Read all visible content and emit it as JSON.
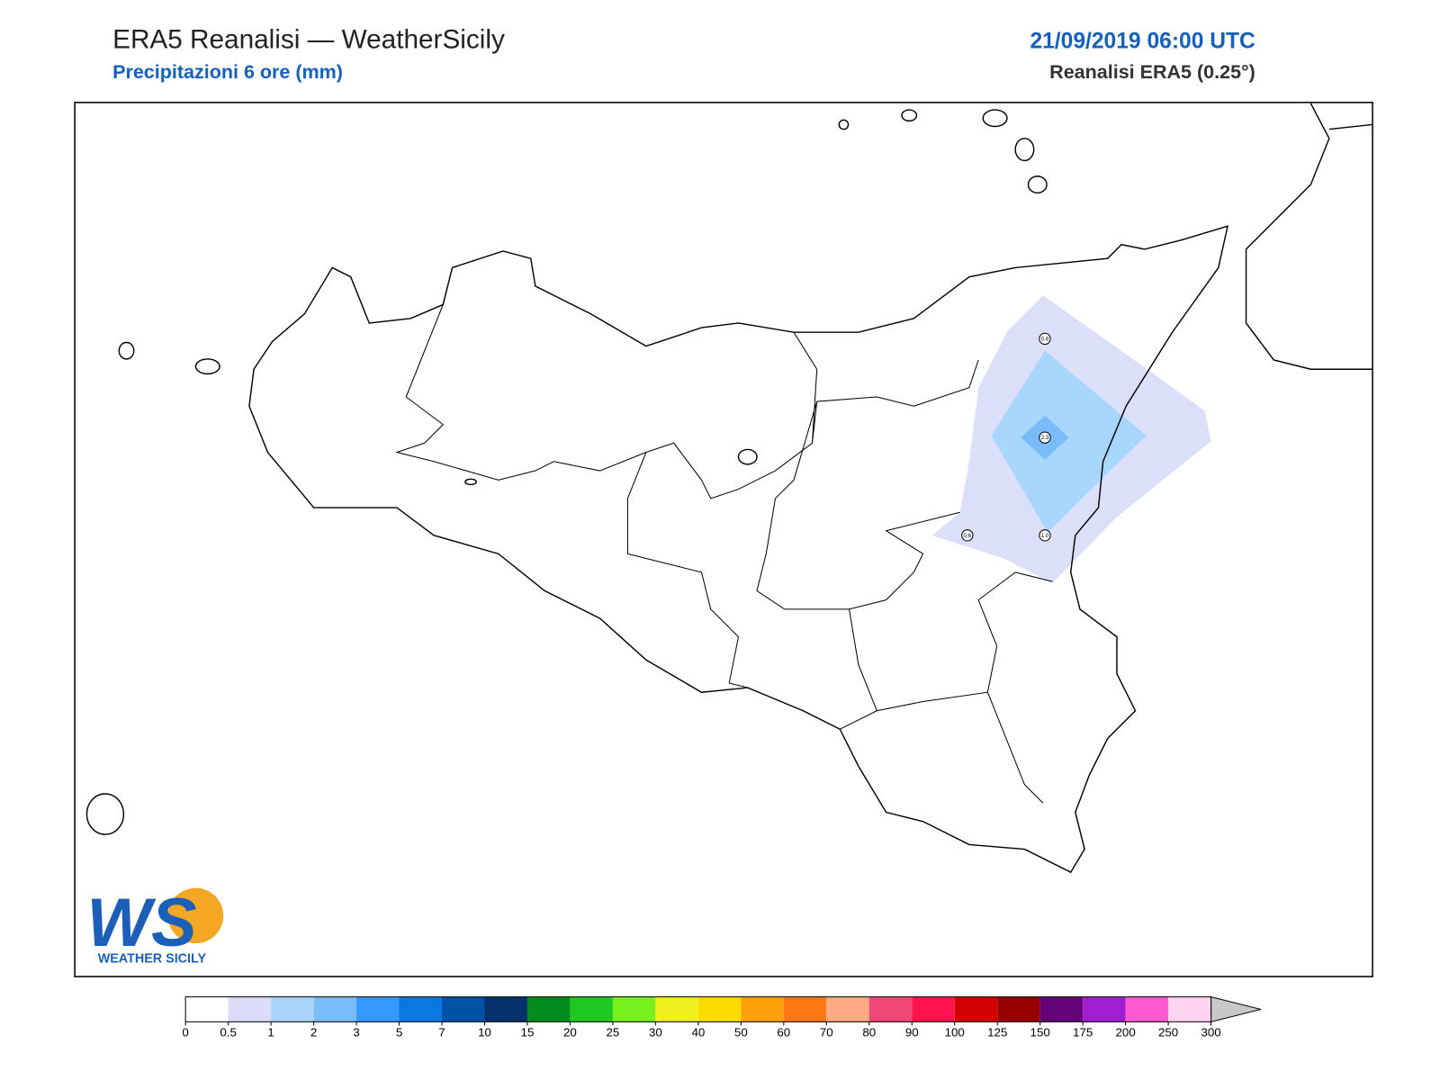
{
  "header": {
    "title": "ERA5 Reanalisi — WeatherSicily",
    "subtitle": "Precipitazioni 6 ore (mm)",
    "datetime": "21/09/2019 06:00 UTC",
    "source": "Reanalisi ERA5 (0.25°)"
  },
  "stations": [
    {
      "label": "0.8"
    },
    {
      "label": "2.3"
    },
    {
      "label": "0.6"
    },
    {
      "label": "1.0"
    }
  ],
  "logo": {
    "mark": "WS",
    "text": "WEATHER SICILY"
  },
  "colorbar": {
    "bounds": [
      0,
      0.5,
      1,
      2,
      3,
      5,
      7,
      10,
      15,
      20,
      25,
      30,
      40,
      50,
      60,
      70,
      80,
      90,
      100,
      125,
      150,
      175,
      200,
      250,
      300
    ],
    "colors": [
      "#ffffff",
      "#dcdcfa",
      "#aad4fc",
      "#78bdf9",
      "#3399fa",
      "#0a78e0",
      "#0052a6",
      "#06316c",
      "#008c1e",
      "#1ec81e",
      "#78f01e",
      "#f0f01e",
      "#ffdc00",
      "#ffa00a",
      "#ff7814",
      "#ffaa82",
      "#f04678",
      "#ff1450",
      "#d20000",
      "#960000",
      "#640078",
      "#a01ed2",
      "#ff5ad2",
      "#ffd2f0"
    ]
  }
}
